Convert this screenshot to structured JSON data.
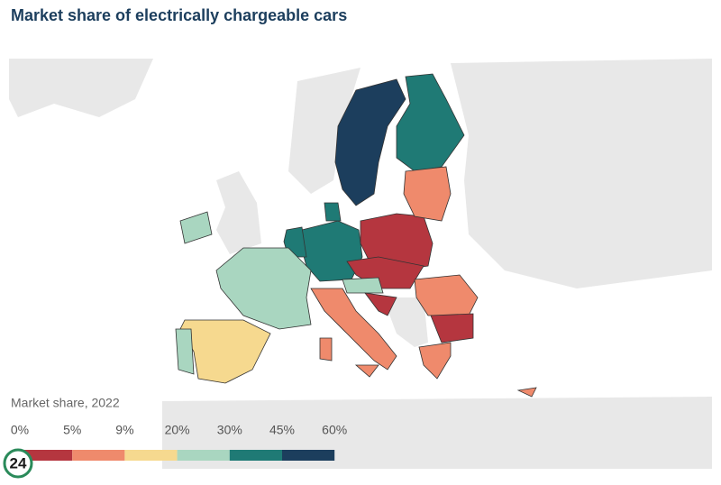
{
  "chart_data": {
    "type": "choropleth",
    "title": "Market share of electrically chargeable cars",
    "legend_title": "Market share, 2022",
    "legend_ticks": [
      {
        "value": 0,
        "label": "0%"
      },
      {
        "value": 5,
        "label": "5%"
      },
      {
        "value": 9,
        "label": "9%"
      },
      {
        "value": 20,
        "label": "20%"
      },
      {
        "value": 30,
        "label": "30%"
      },
      {
        "value": 45,
        "label": "45%"
      },
      {
        "value": 60,
        "label": "60%"
      }
    ],
    "colors": [
      "#b5363f",
      "#ef8a6c",
      "#f6d98f",
      "#a9d6c0",
      "#1f7a75",
      "#1c3e5d"
    ],
    "watermark": "24"
  }
}
